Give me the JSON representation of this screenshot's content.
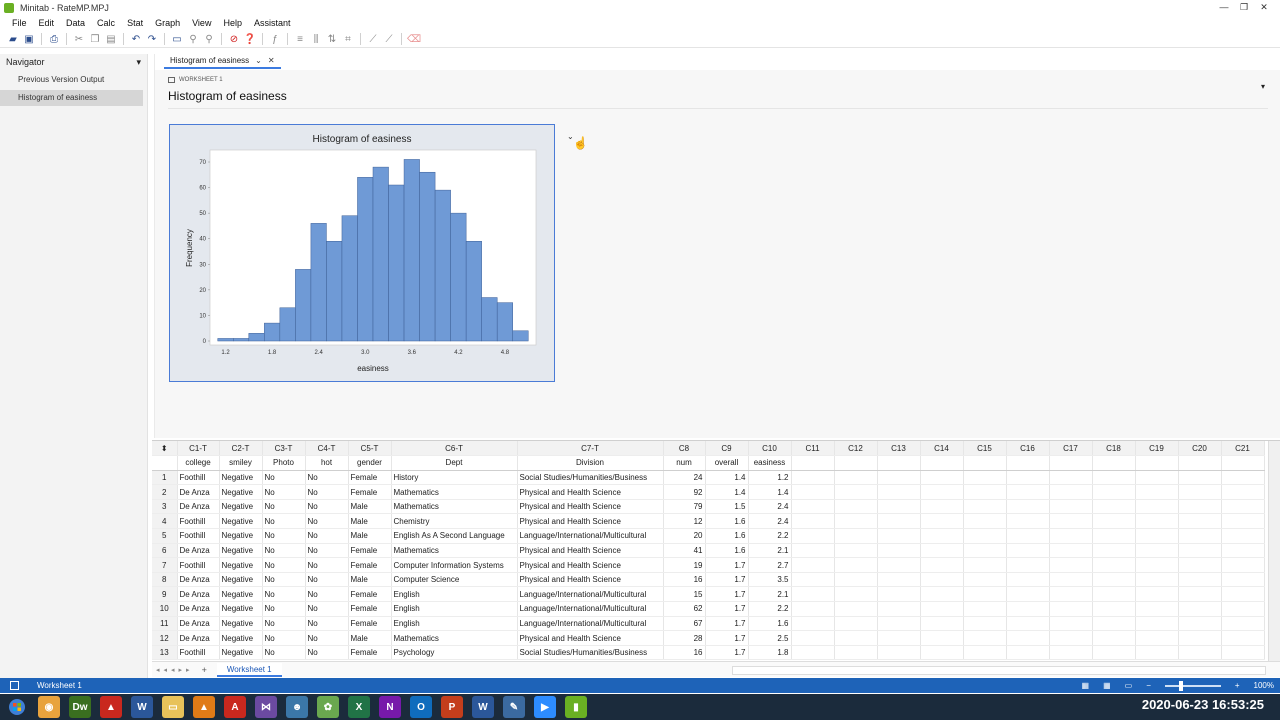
{
  "window": {
    "title": "Minitab - RateMP.MPJ",
    "controls": [
      "—",
      "❐",
      "✕"
    ]
  },
  "menu": [
    "File",
    "Edit",
    "Data",
    "Calc",
    "Stat",
    "Graph",
    "View",
    "Help",
    "Assistant"
  ],
  "navigator": {
    "title": "Navigator",
    "items": [
      {
        "label": "Previous Version Output",
        "active": false
      },
      {
        "label": "Histogram of easiness",
        "active": true
      }
    ]
  },
  "output": {
    "tab_label": "Histogram of easiness",
    "worksheet_label": "WORKSHEET 1",
    "title": "Histogram of easiness"
  },
  "chart_data": {
    "type": "bar",
    "title": "Histogram of easiness",
    "xlabel": "easiness",
    "ylabel": "Frequency",
    "x_ticks": [
      "1.2",
      "1.8",
      "2.4",
      "3.0",
      "3.6",
      "4.2",
      "4.8"
    ],
    "y_ticks": [
      "0",
      "10",
      "20",
      "30",
      "40",
      "50",
      "60",
      "70"
    ],
    "ylim": [
      0,
      70
    ],
    "bin_width": 0.2,
    "bin_start": 1.1,
    "values": [
      1,
      1,
      3,
      7,
      13,
      28,
      46,
      39,
      49,
      64,
      68,
      61,
      71,
      66,
      59,
      50,
      39,
      17,
      15,
      4
    ],
    "bar_color": "#6f9ad6",
    "plot_background": "#ffffff",
    "frame_background": "#e4e8ee"
  },
  "worksheet": {
    "col_ids": [
      "C1-T",
      "C2-T",
      "C3-T",
      "C4-T",
      "C5-T",
      "C6-T",
      "C7-T",
      "C8",
      "C9",
      "C10",
      "C11",
      "C12",
      "C13",
      "C14",
      "C15",
      "C16",
      "C17",
      "C18",
      "C19",
      "C20",
      "C21"
    ],
    "col_names": [
      "college",
      "smiley",
      "Photo",
      "hot",
      "gender",
      "Dept",
      "Division",
      "num",
      "overall",
      "easiness",
      "",
      "",
      "",
      "",
      "",
      "",
      "",
      "",
      "",
      "",
      ""
    ],
    "rows": [
      [
        "1",
        "Foothill",
        "Negative",
        "No",
        "No",
        "Female",
        "History",
        "Social Studies/Humanities/Business",
        "24",
        "1.4",
        "1.2"
      ],
      [
        "2",
        "De Anza",
        "Negative",
        "No",
        "No",
        "Female",
        "Mathematics",
        "Physical and Health Science",
        "92",
        "1.4",
        "1.4"
      ],
      [
        "3",
        "De Anza",
        "Negative",
        "No",
        "No",
        "Male",
        "Mathematics",
        "Physical and Health Science",
        "79",
        "1.5",
        "2.4"
      ],
      [
        "4",
        "Foothill",
        "Negative",
        "No",
        "No",
        "Male",
        "Chemistry",
        "Physical and Health Science",
        "12",
        "1.6",
        "2.4"
      ],
      [
        "5",
        "Foothill",
        "Negative",
        "No",
        "No",
        "Male",
        "English As A Second Language",
        "Language/International/Multicultural",
        "20",
        "1.6",
        "2.2"
      ],
      [
        "6",
        "De Anza",
        "Negative",
        "No",
        "No",
        "Female",
        "Mathematics",
        "Physical and Health Science",
        "41",
        "1.6",
        "2.1"
      ],
      [
        "7",
        "Foothill",
        "Negative",
        "No",
        "No",
        "Female",
        "Computer Information Systems",
        "Physical and Health Science",
        "19",
        "1.7",
        "2.7"
      ],
      [
        "8",
        "De Anza",
        "Negative",
        "No",
        "No",
        "Male",
        "Computer Science",
        "Physical and Health Science",
        "16",
        "1.7",
        "3.5"
      ],
      [
        "9",
        "De Anza",
        "Negative",
        "No",
        "No",
        "Female",
        "English",
        "Language/International/Multicultural",
        "15",
        "1.7",
        "2.1"
      ],
      [
        "10",
        "De Anza",
        "Negative",
        "No",
        "No",
        "Female",
        "English",
        "Language/International/Multicultural",
        "62",
        "1.7",
        "2.2"
      ],
      [
        "11",
        "De Anza",
        "Negative",
        "No",
        "No",
        "Female",
        "English",
        "Language/International/Multicultural",
        "67",
        "1.7",
        "1.6"
      ],
      [
        "12",
        "De Anza",
        "Negative",
        "No",
        "No",
        "Male",
        "Mathematics",
        "Physical and Health Science",
        "28",
        "1.7",
        "2.5"
      ],
      [
        "13",
        "Foothill",
        "Negative",
        "No",
        "No",
        "Female",
        "Psychology",
        "Social Studies/Humanities/Business",
        "16",
        "1.7",
        "1.8"
      ]
    ],
    "sheet_tab": "Worksheet 1"
  },
  "status": {
    "text": "Worksheet 1",
    "zoom": "100%"
  },
  "taskbar": {
    "clock": "2020-06-23  16:53:25",
    "apps": [
      {
        "name": "Chrome",
        "glyph": "◉",
        "color": "#e8a33d"
      },
      {
        "name": "DW",
        "glyph": "Dw",
        "color": "#3a6f1f"
      },
      {
        "name": "Acrobat",
        "glyph": "▲",
        "color": "#c9281e"
      },
      {
        "name": "Word",
        "glyph": "W",
        "color": "#2b579a"
      },
      {
        "name": "Explorer",
        "glyph": "▭",
        "color": "#e8c25a"
      },
      {
        "name": "VLC",
        "glyph": "▲",
        "color": "#e07b17"
      },
      {
        "name": "PDF",
        "glyph": "A",
        "color": "#c9281e"
      },
      {
        "name": "Visual Studio",
        "glyph": "⋈",
        "color": "#6b4aa1"
      },
      {
        "name": "Python",
        "glyph": "☻",
        "color": "#3b77a8"
      },
      {
        "name": "App",
        "glyph": "✿",
        "color": "#6aa84f"
      },
      {
        "name": "Excel",
        "glyph": "X",
        "color": "#217346"
      },
      {
        "name": "OneNote",
        "glyph": "N",
        "color": "#7719aa"
      },
      {
        "name": "Outlook",
        "glyph": "O",
        "color": "#0f6cbd"
      },
      {
        "name": "PowerPoint",
        "glyph": "P",
        "color": "#c43e1c"
      },
      {
        "name": "Word2",
        "glyph": "W",
        "color": "#2b579a"
      },
      {
        "name": "Notepad",
        "glyph": "✎",
        "color": "#3b6aa0"
      },
      {
        "name": "Zoom",
        "glyph": "▶",
        "color": "#2d8cff"
      },
      {
        "name": "Minitab",
        "glyph": "▮",
        "color": "#6ab023"
      }
    ]
  }
}
